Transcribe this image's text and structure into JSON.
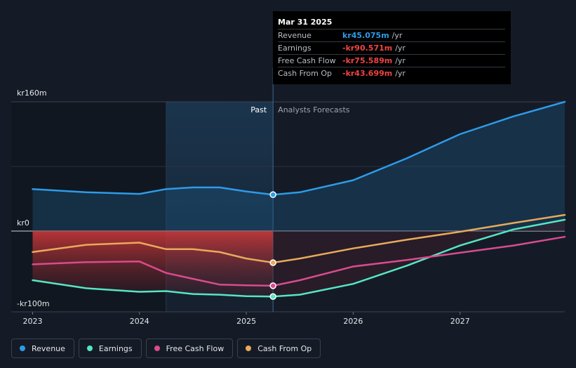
{
  "chart_data": {
    "type": "line",
    "x_ticks": [
      "2023",
      "2024",
      "2025",
      "2026",
      "2027"
    ],
    "x_range": [
      2022.8,
      2027.98
    ],
    "ylim": [
      -110,
      160
    ],
    "y_ticks": [
      {
        "value": 160,
        "label": "kr160m"
      },
      {
        "value": 0,
        "label": "kr0"
      },
      {
        "value": -100,
        "label": "-kr100m"
      }
    ],
    "past_label": "Past",
    "forecast_label": "Analysts Forecasts",
    "past_start": 2024.25,
    "divider_x": 2025.25,
    "series": [
      {
        "name": "Revenue",
        "color": "#2d9be8",
        "points": [
          [
            2023.0,
            52
          ],
          [
            2023.5,
            48
          ],
          [
            2024.0,
            46
          ],
          [
            2024.25,
            52
          ],
          [
            2024.5,
            54
          ],
          [
            2024.75,
            54
          ],
          [
            2025.0,
            49
          ],
          [
            2025.25,
            45.075
          ],
          [
            2025.5,
            48
          ],
          [
            2026.0,
            63
          ],
          [
            2026.5,
            90
          ],
          [
            2027.0,
            120
          ],
          [
            2027.5,
            142
          ],
          [
            2027.98,
            160
          ]
        ],
        "marker": [
          2025.25,
          45.075
        ]
      },
      {
        "name": "Earnings",
        "color": "#55e6c4",
        "points": [
          [
            2023.0,
            -68
          ],
          [
            2023.5,
            -79
          ],
          [
            2024.0,
            -84
          ],
          [
            2024.25,
            -83
          ],
          [
            2024.5,
            -87
          ],
          [
            2024.75,
            -88
          ],
          [
            2025.0,
            -90
          ],
          [
            2025.25,
            -90.571
          ],
          [
            2025.5,
            -88
          ],
          [
            2026.0,
            -73
          ],
          [
            2026.5,
            -48
          ],
          [
            2027.0,
            -20
          ],
          [
            2027.5,
            2
          ],
          [
            2027.98,
            14
          ]
        ],
        "marker": [
          2025.25,
          -90.571
        ]
      },
      {
        "name": "Free Cash Flow",
        "color": "#d94b8e",
        "points": [
          [
            2023.0,
            -46
          ],
          [
            2023.5,
            -43
          ],
          [
            2024.0,
            -42
          ],
          [
            2024.25,
            -58
          ],
          [
            2024.5,
            -66
          ],
          [
            2024.75,
            -74
          ],
          [
            2025.0,
            -75
          ],
          [
            2025.25,
            -75.589
          ],
          [
            2025.5,
            -68
          ],
          [
            2026.0,
            -49
          ],
          [
            2026.5,
            -40
          ],
          [
            2027.0,
            -30
          ],
          [
            2027.5,
            -20
          ],
          [
            2027.98,
            -8
          ]
        ],
        "marker": [
          2025.25,
          -75.589
        ]
      },
      {
        "name": "Cash From Op",
        "color": "#e8aa5b",
        "points": [
          [
            2023.0,
            -29
          ],
          [
            2023.5,
            -19
          ],
          [
            2024.0,
            -16
          ],
          [
            2024.25,
            -25
          ],
          [
            2024.5,
            -25
          ],
          [
            2024.75,
            -29
          ],
          [
            2025.0,
            -38
          ],
          [
            2025.25,
            -43.699
          ],
          [
            2025.5,
            -38
          ],
          [
            2026.0,
            -24
          ],
          [
            2026.5,
            -12
          ],
          [
            2027.0,
            -1
          ],
          [
            2027.5,
            10
          ],
          [
            2027.98,
            20
          ]
        ],
        "marker": [
          2025.25,
          -43.699
        ]
      }
    ]
  },
  "tooltip": {
    "date": "Mar 31 2025",
    "unit": "/yr",
    "rows": [
      {
        "label": "Revenue",
        "value": "kr45.075m",
        "color": "#2d9be8"
      },
      {
        "label": "Earnings",
        "value": "-kr90.571m",
        "color": "#ef4444"
      },
      {
        "label": "Free Cash Flow",
        "value": "-kr75.589m",
        "color": "#ef4444"
      },
      {
        "label": "Cash From Op",
        "value": "-kr43.699m",
        "color": "#ef4444"
      }
    ]
  },
  "legend": [
    {
      "label": "Revenue",
      "color": "#2d9be8"
    },
    {
      "label": "Earnings",
      "color": "#55e6c4"
    },
    {
      "label": "Free Cash Flow",
      "color": "#d94b8e"
    },
    {
      "label": "Cash From Op",
      "color": "#e8aa5b"
    }
  ]
}
